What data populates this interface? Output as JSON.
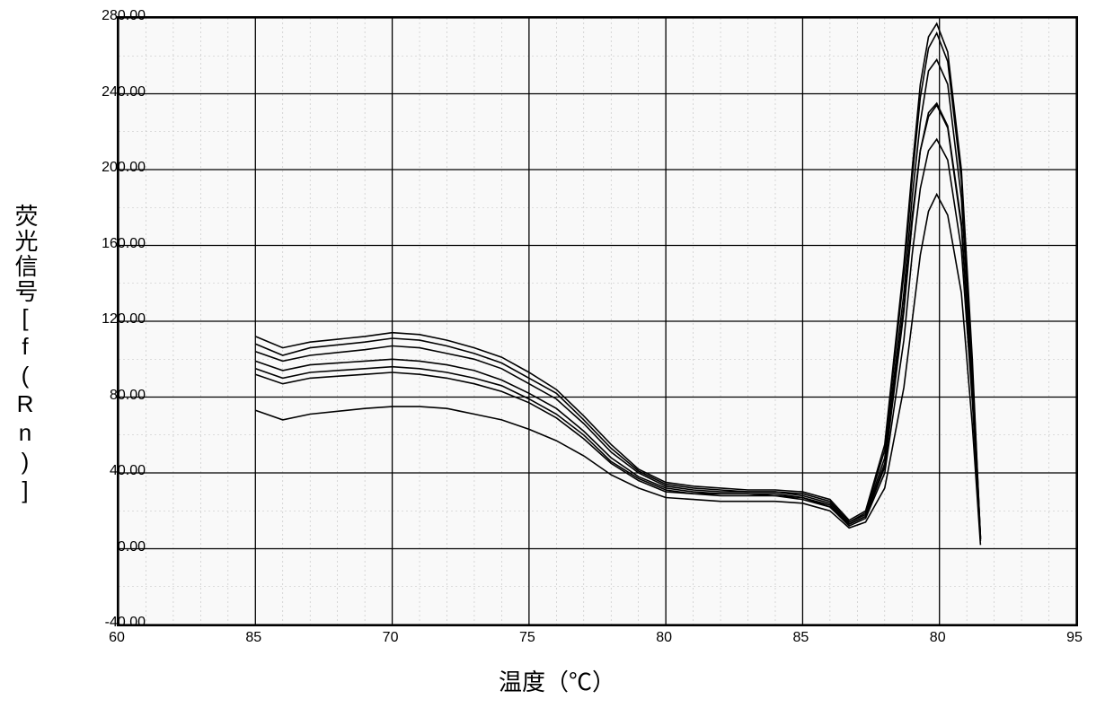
{
  "chart": {
    "type": "line",
    "background_color": "#f9f9f9",
    "border_color": "#000000",
    "major_grid_color": "#000000",
    "minor_grid_color": "#bfbfbf",
    "curve_color": "#000000",
    "xlabel": "温度（℃）",
    "ylabel": "荧光信号[f(Rn)]",
    "label_fontsize": 26,
    "tick_fontsize": 16,
    "xlim": [
      60,
      95
    ],
    "ylim": [
      -40,
      280
    ],
    "x_ticks": [
      60,
      65,
      70,
      75,
      80,
      85,
      90,
      95
    ],
    "x_tick_labels": [
      "60",
      "85",
      "70",
      "75",
      "80",
      "85",
      "80",
      "95"
    ],
    "y_ticks": [
      -40,
      0,
      40,
      80,
      120,
      160,
      200,
      240,
      280
    ],
    "y_tick_labels": [
      "-40.00",
      "0.00",
      "40.00",
      "80.00",
      "120.00",
      "160.00",
      "200.00",
      "240.00",
      "280.00"
    ],
    "x_minor_step": 1,
    "y_minor_step": 20,
    "line_width": 1.6,
    "series": [
      {
        "name": "s1",
        "data": [
          [
            65,
            112
          ],
          [
            66,
            106
          ],
          [
            67,
            109
          ],
          [
            69,
            112
          ],
          [
            70,
            114
          ],
          [
            71,
            113
          ],
          [
            72,
            110
          ],
          [
            73,
            106
          ],
          [
            74,
            101
          ],
          [
            75,
            93
          ],
          [
            76,
            84
          ],
          [
            77,
            70
          ],
          [
            78,
            55
          ],
          [
            79,
            42
          ],
          [
            80,
            35
          ],
          [
            81,
            33
          ],
          [
            82,
            32
          ],
          [
            83,
            31
          ],
          [
            84,
            31
          ],
          [
            85,
            30
          ],
          [
            86,
            26
          ],
          [
            86.7,
            15
          ],
          [
            87.3,
            20
          ],
          [
            88,
            55
          ],
          [
            88.7,
            150
          ],
          [
            89,
            200
          ],
          [
            89.3,
            245
          ],
          [
            89.6,
            270
          ],
          [
            89.9,
            277
          ],
          [
            90.3,
            262
          ],
          [
            90.8,
            200
          ],
          [
            91.2,
            100
          ],
          [
            91.5,
            5
          ]
        ]
      },
      {
        "name": "s2",
        "data": [
          [
            65,
            108
          ],
          [
            66,
            102
          ],
          [
            67,
            106
          ],
          [
            69,
            109
          ],
          [
            70,
            111
          ],
          [
            71,
            110
          ],
          [
            72,
            107
          ],
          [
            73,
            103
          ],
          [
            74,
            98
          ],
          [
            75,
            90
          ],
          [
            76,
            82
          ],
          [
            77,
            68
          ],
          [
            78,
            53
          ],
          [
            79,
            41
          ],
          [
            80,
            34
          ],
          [
            81,
            32
          ],
          [
            82,
            31
          ],
          [
            83,
            30
          ],
          [
            84,
            30
          ],
          [
            85,
            29
          ],
          [
            86,
            25
          ],
          [
            86.7,
            14
          ],
          [
            87.3,
            19
          ],
          [
            88,
            52
          ],
          [
            88.7,
            145
          ],
          [
            89,
            195
          ],
          [
            89.3,
            238
          ],
          [
            89.6,
            264
          ],
          [
            89.9,
            272
          ],
          [
            90.3,
            257
          ],
          [
            90.8,
            195
          ],
          [
            91.2,
            96
          ],
          [
            91.5,
            6
          ]
        ]
      },
      {
        "name": "s3",
        "data": [
          [
            65,
            104
          ],
          [
            66,
            99
          ],
          [
            67,
            102
          ],
          [
            69,
            105
          ],
          [
            70,
            107
          ],
          [
            71,
            106
          ],
          [
            72,
            103
          ],
          [
            73,
            100
          ],
          [
            74,
            95
          ],
          [
            75,
            87
          ],
          [
            76,
            79
          ],
          [
            77,
            66
          ],
          [
            78,
            51
          ],
          [
            79,
            40
          ],
          [
            80,
            33
          ],
          [
            81,
            31
          ],
          [
            82,
            30
          ],
          [
            83,
            30
          ],
          [
            84,
            30
          ],
          [
            85,
            28
          ],
          [
            86,
            24
          ],
          [
            86.7,
            14
          ],
          [
            87.3,
            18
          ],
          [
            88,
            48
          ],
          [
            88.7,
            135
          ],
          [
            89,
            185
          ],
          [
            89.3,
            225
          ],
          [
            89.6,
            252
          ],
          [
            89.9,
            258
          ],
          [
            90.3,
            245
          ],
          [
            90.8,
            185
          ],
          [
            91.2,
            92
          ],
          [
            91.5,
            6
          ]
        ]
      },
      {
        "name": "s4",
        "data": [
          [
            65,
            99
          ],
          [
            66,
            94
          ],
          [
            67,
            97
          ],
          [
            69,
            99
          ],
          [
            70,
            100
          ],
          [
            71,
            99
          ],
          [
            72,
            97
          ],
          [
            73,
            94
          ],
          [
            74,
            89
          ],
          [
            75,
            82
          ],
          [
            76,
            74
          ],
          [
            77,
            62
          ],
          [
            78,
            48
          ],
          [
            79,
            38
          ],
          [
            80,
            32
          ],
          [
            81,
            30
          ],
          [
            82,
            29
          ],
          [
            83,
            29
          ],
          [
            84,
            29
          ],
          [
            85,
            27
          ],
          [
            86,
            23
          ],
          [
            86.7,
            13
          ],
          [
            87.3,
            17
          ],
          [
            88,
            45
          ],
          [
            88.7,
            128
          ],
          [
            89,
            175
          ],
          [
            89.3,
            210
          ],
          [
            89.6,
            230
          ],
          [
            89.9,
            235
          ],
          [
            90.3,
            223
          ],
          [
            90.8,
            172
          ],
          [
            91.2,
            85
          ],
          [
            91.5,
            5
          ]
        ]
      },
      {
        "name": "s5",
        "data": [
          [
            65,
            95
          ],
          [
            66,
            90
          ],
          [
            67,
            93
          ],
          [
            69,
            95
          ],
          [
            70,
            96
          ],
          [
            71,
            95
          ],
          [
            72,
            93
          ],
          [
            73,
            90
          ],
          [
            74,
            86
          ],
          [
            75,
            79
          ],
          [
            76,
            71
          ],
          [
            77,
            60
          ],
          [
            78,
            46
          ],
          [
            79,
            37
          ],
          [
            80,
            31
          ],
          [
            81,
            29
          ],
          [
            82,
            29
          ],
          [
            83,
            29
          ],
          [
            84,
            28
          ],
          [
            85,
            27
          ],
          [
            86,
            22
          ],
          [
            86.7,
            13
          ],
          [
            87.3,
            17
          ],
          [
            88,
            43
          ],
          [
            88.7,
            125
          ],
          [
            89,
            172
          ],
          [
            89.3,
            210
          ],
          [
            89.6,
            228
          ],
          [
            89.9,
            234
          ],
          [
            90.3,
            222
          ],
          [
            90.8,
            170
          ],
          [
            91.2,
            83
          ],
          [
            91.5,
            5
          ]
        ]
      },
      {
        "name": "s6",
        "data": [
          [
            65,
            92
          ],
          [
            66,
            87
          ],
          [
            67,
            90
          ],
          [
            69,
            92
          ],
          [
            70,
            93
          ],
          [
            71,
            92
          ],
          [
            72,
            90
          ],
          [
            73,
            87
          ],
          [
            74,
            83
          ],
          [
            75,
            77
          ],
          [
            76,
            69
          ],
          [
            77,
            58
          ],
          [
            78,
            45
          ],
          [
            79,
            36
          ],
          [
            80,
            30
          ],
          [
            81,
            29
          ],
          [
            82,
            28
          ],
          [
            83,
            28
          ],
          [
            84,
            28
          ],
          [
            85,
            26
          ],
          [
            86,
            22
          ],
          [
            86.7,
            12
          ],
          [
            87.3,
            16
          ],
          [
            88,
            40
          ],
          [
            88.7,
            110
          ],
          [
            89,
            155
          ],
          [
            89.3,
            190
          ],
          [
            89.6,
            210
          ],
          [
            89.9,
            216
          ],
          [
            90.3,
            205
          ],
          [
            90.8,
            158
          ],
          [
            91.2,
            78
          ],
          [
            91.5,
            4
          ]
        ]
      },
      {
        "name": "s7",
        "data": [
          [
            65,
            73
          ],
          [
            66,
            68
          ],
          [
            67,
            71
          ],
          [
            69,
            74
          ],
          [
            70,
            75
          ],
          [
            71,
            75
          ],
          [
            72,
            74
          ],
          [
            73,
            71
          ],
          [
            74,
            68
          ],
          [
            75,
            63
          ],
          [
            76,
            57
          ],
          [
            77,
            49
          ],
          [
            78,
            39
          ],
          [
            79,
            32
          ],
          [
            80,
            27
          ],
          [
            81,
            26
          ],
          [
            82,
            25
          ],
          [
            83,
            25
          ],
          [
            84,
            25
          ],
          [
            85,
            24
          ],
          [
            86,
            20
          ],
          [
            86.7,
            11
          ],
          [
            87.3,
            14
          ],
          [
            88,
            32
          ],
          [
            88.7,
            85
          ],
          [
            89,
            120
          ],
          [
            89.3,
            155
          ],
          [
            89.6,
            178
          ],
          [
            89.9,
            187
          ],
          [
            90.3,
            176
          ],
          [
            90.8,
            135
          ],
          [
            91.2,
            65
          ],
          [
            91.5,
            2
          ]
        ]
      }
    ]
  }
}
